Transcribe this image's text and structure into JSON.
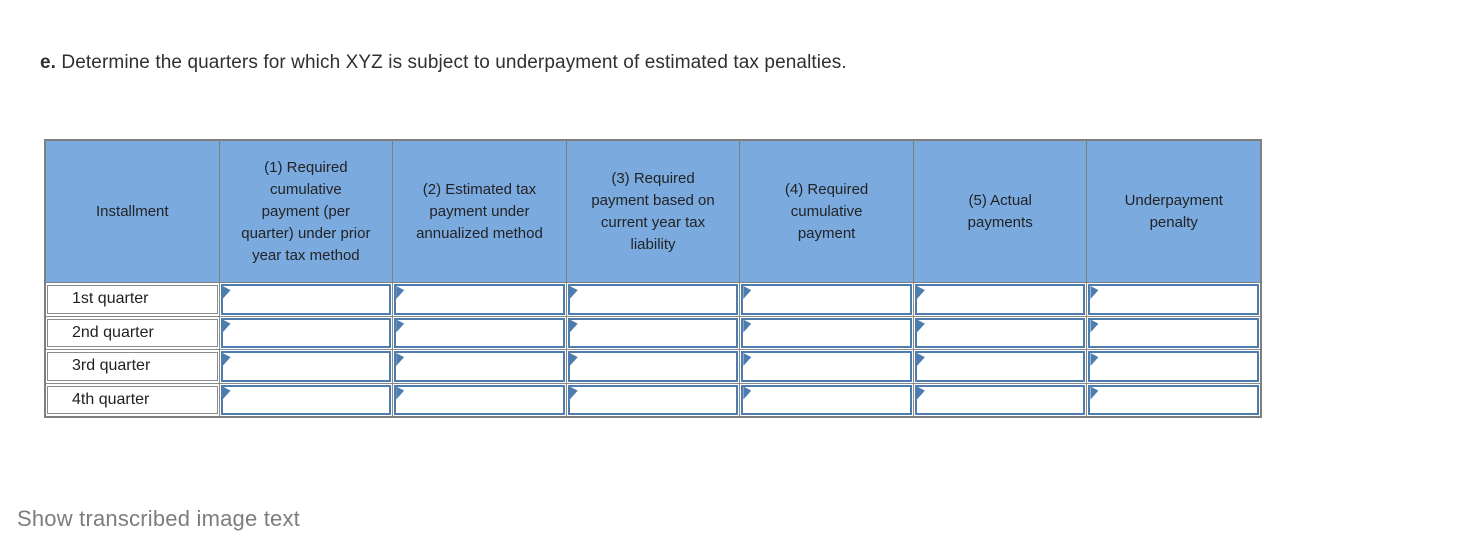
{
  "question": {
    "label": "e.",
    "text": " Determine the quarters for which XYZ is subject to underpayment of estimated tax penalties."
  },
  "table": {
    "columns": [
      {
        "id": "installment",
        "label": "Installment"
      },
      {
        "id": "required-cumulative-prior-year",
        "label": "(1) Required\ncumulative\npayment (per\nquarter) under prior\nyear tax method"
      },
      {
        "id": "estimated-annualized",
        "label": "(2) Estimated tax\npayment under\nannualized method"
      },
      {
        "id": "required-current-year",
        "label": "(3) Required\npayment based on\ncurrent year tax\nliability"
      },
      {
        "id": "required-cumulative",
        "label": "(4) Required\ncumulative\npayment"
      },
      {
        "id": "actual-payments",
        "label": "(5) Actual\npayments"
      },
      {
        "id": "underpayment-penalty",
        "label": "Underpayment\npenalty"
      }
    ],
    "rows": [
      {
        "label": "1st quarter",
        "values": [
          "",
          "",
          "",
          "",
          "",
          ""
        ]
      },
      {
        "label": "2nd quarter",
        "values": [
          "",
          "",
          "",
          "",
          "",
          ""
        ]
      },
      {
        "label": "3rd quarter",
        "values": [
          "",
          "",
          "",
          "",
          "",
          ""
        ]
      },
      {
        "label": "4th quarter",
        "values": [
          "",
          "",
          "",
          "",
          "",
          ""
        ]
      }
    ]
  },
  "footer": {
    "show_transcribed_label": "Show transcribed image text"
  },
  "colors": {
    "header_fill": "#7BAADE",
    "input_border": "#4D7DAF",
    "grid_line": "#8B8B8B",
    "table_border": "#7F7F7F",
    "link_text": "#7B7D7E",
    "body_text": "#2F3033"
  }
}
